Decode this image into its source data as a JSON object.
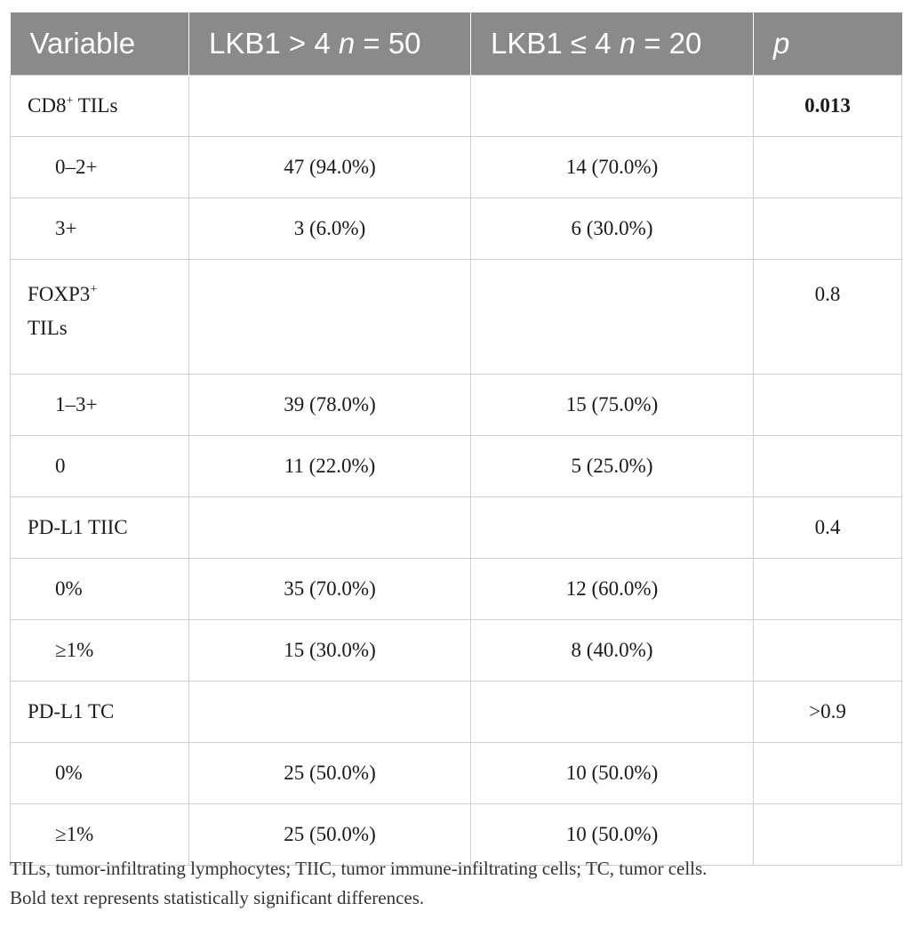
{
  "table": {
    "headers": {
      "variable": "Variable",
      "col1_prefix": "LKB1 > 4 ",
      "col1_n": "n",
      "col1_suffix": " = 50",
      "col2_prefix": "LKB1 ≤ 4 ",
      "col2_n": "n",
      "col2_suffix": " = 20",
      "p": "p"
    },
    "groups": [
      {
        "label": "CD8",
        "sup": "+",
        "label_rest": " TILs",
        "p": "0.013",
        "p_bold": true,
        "rows": [
          {
            "label": "0–2+",
            "a": "47 (94.0%)",
            "b": "14 (70.0%)"
          },
          {
            "label": "3+",
            "a": "3 (6.0%)",
            "b": "6 (30.0%)"
          }
        ]
      },
      {
        "label": "FOXP3",
        "sup": "+",
        "label_rest": " TILs",
        "p": "0.8",
        "p_bold": false,
        "rows": [
          {
            "label": "1–3+",
            "a": "39 (78.0%)",
            "b": "15 (75.0%)"
          },
          {
            "label": "0",
            "a": "11 (22.0%)",
            "b": "5 (25.0%)"
          }
        ]
      },
      {
        "label": "PD-L1 TIIC",
        "p": "0.4",
        "p_bold": false,
        "rows": [
          {
            "label": "0%",
            "a": "35 (70.0%)",
            "b": "12 (60.0%)"
          },
          {
            "label": "≥1%",
            "a": "15 (30.0%)",
            "b": "8 (40.0%)"
          }
        ]
      },
      {
        "label": "PD-L1 TC",
        "p": ">0.9",
        "p_bold": false,
        "rows": [
          {
            "label": "0%",
            "a": "25 (50.0%)",
            "b": "10 (50.0%)"
          },
          {
            "label": "≥1%",
            "a": "25 (50.0%)",
            "b": "10 (50.0%)"
          }
        ]
      }
    ]
  },
  "footnote": {
    "line1": "TILs, tumor-infiltrating lymphocytes; TIIC, tumor immune-infiltrating cells; TC, tumor cells.",
    "line2": "Bold text represents statistically significant differences."
  }
}
